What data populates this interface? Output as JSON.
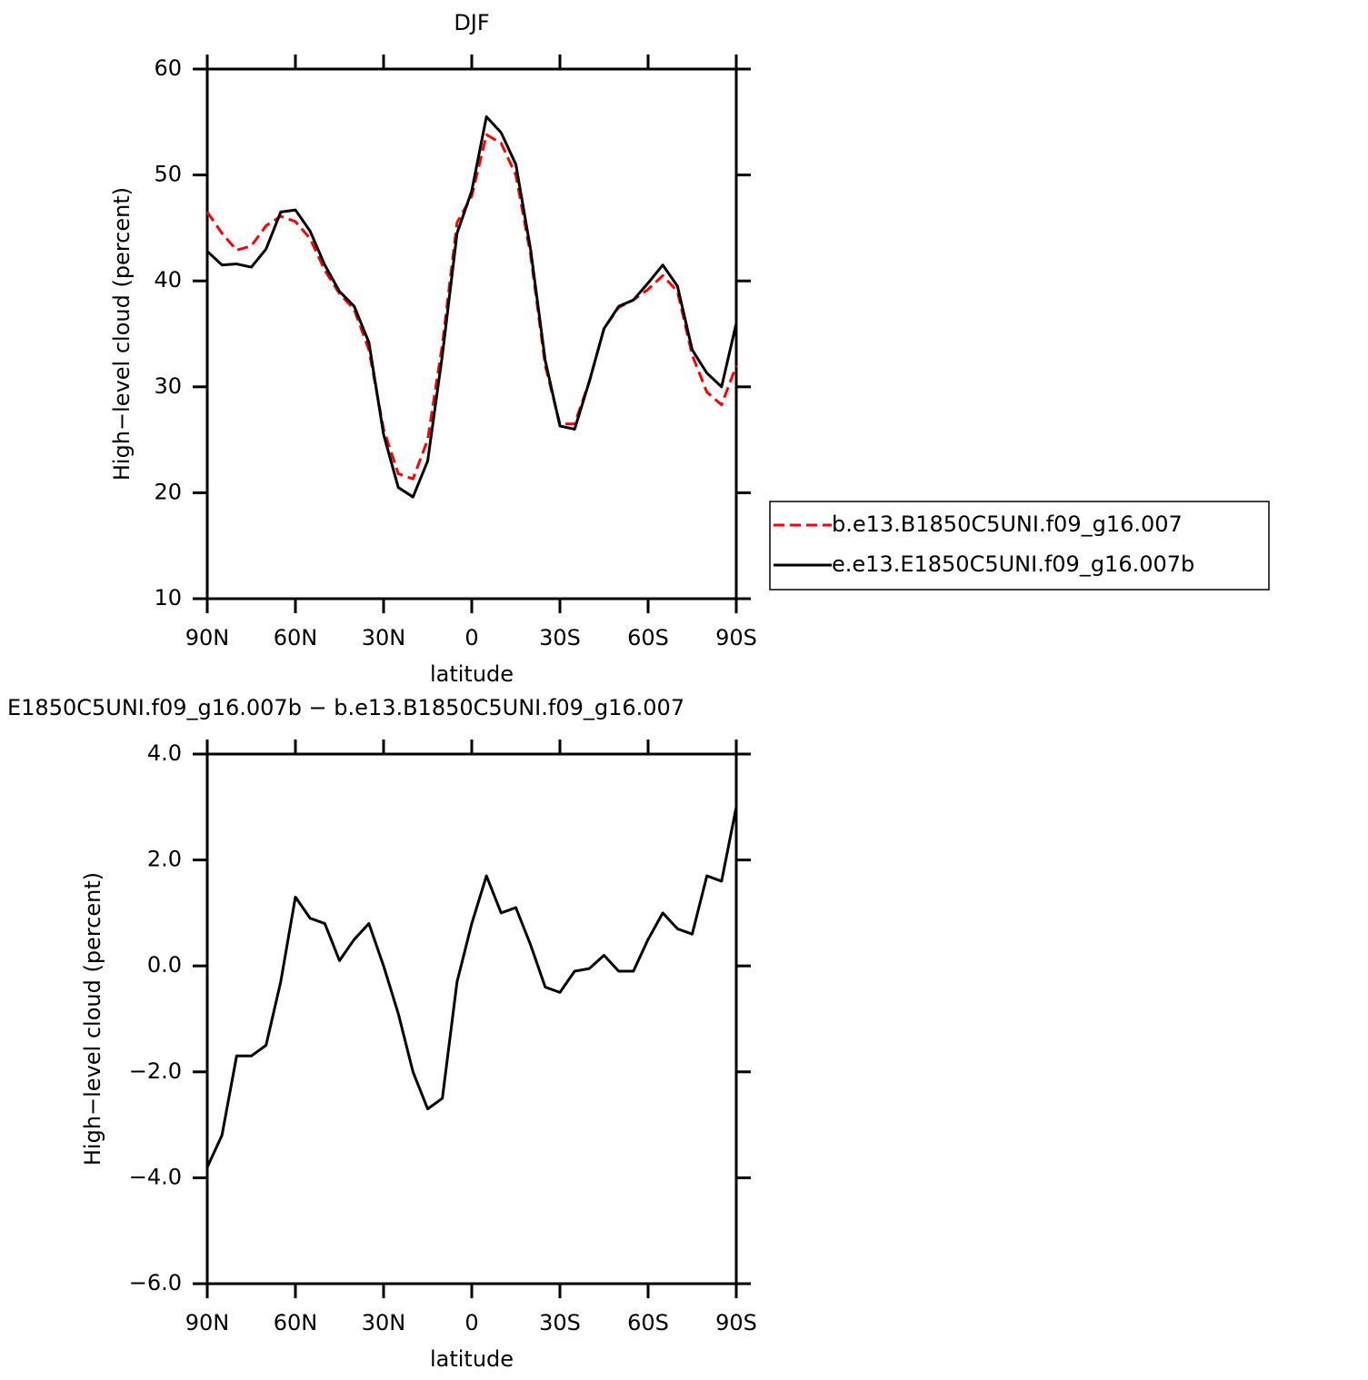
{
  "chart_data": [
    {
      "type": "line",
      "title": "DJF",
      "xlabel": "latitude",
      "ylabel": "High−level cloud (percent)",
      "x": [
        90,
        85,
        80,
        75,
        70,
        65,
        60,
        55,
        50,
        45,
        40,
        35,
        30,
        25,
        20,
        15,
        10,
        5,
        0,
        -5,
        -10,
        -15,
        -20,
        -25,
        -30,
        -35,
        -40,
        -45,
        -50,
        -55,
        -60,
        -65,
        -70,
        -75,
        -80,
        -85,
        -90
      ],
      "xlim": [
        90,
        -90
      ],
      "xticks": [
        {
          "value": 90,
          "label": "90N"
        },
        {
          "value": 60,
          "label": "60N"
        },
        {
          "value": 30,
          "label": "30N"
        },
        0,
        {
          "value": -30,
          "label": "30S"
        },
        {
          "value": -60,
          "label": "60S"
        },
        {
          "value": -90,
          "label": "90S"
        }
      ],
      "ylim": [
        10,
        60
      ],
      "yticks": [
        10,
        20,
        30,
        40,
        50,
        60
      ],
      "legend": "right",
      "series": [
        {
          "name": "b.e13.B1850C5UNI.f09_g16.007",
          "color": "#ff0000",
          "dashed": true,
          "values": [
            46.5,
            44.5,
            42.9,
            43.3,
            45.2,
            46.1,
            45.6,
            44.0,
            41.0,
            38.8,
            37.3,
            33.5,
            26.0,
            21.8,
            21.3,
            25.0,
            34.0,
            45.5,
            48.0,
            53.8,
            53.0,
            50.0,
            42.5,
            32.0,
            26.5,
            26.5,
            30.5,
            35.5,
            37.5,
            38.2,
            39.2,
            40.5,
            39.0,
            33.0,
            29.5,
            28.3,
            32.0
          ]
        },
        {
          "name": "e.e13.E1850C5UNI.f09_g16.007b",
          "color": "#000000",
          "dashed": false,
          "values": [
            42.8,
            41.5,
            41.6,
            41.3,
            43.0,
            46.5,
            46.7,
            44.7,
            41.5,
            39.0,
            37.6,
            34.2,
            25.5,
            20.5,
            19.6,
            23.0,
            33.0,
            44.5,
            48.5,
            55.5,
            54.0,
            51.0,
            43.0,
            32.5,
            26.3,
            26.0,
            30.5,
            35.5,
            37.6,
            38.2,
            39.8,
            41.5,
            39.5,
            33.5,
            31.3,
            30.0,
            36.0
          ]
        }
      ]
    },
    {
      "type": "line",
      "title": "E1850C5UNI.f09_g16.007b − b.e13.B1850C5UNI.f09_g16.007",
      "xlabel": "latitude",
      "ylabel": "High−level cloud (percent)",
      "x": [
        90,
        85,
        80,
        75,
        70,
        65,
        60,
        55,
        50,
        45,
        40,
        35,
        30,
        25,
        20,
        15,
        10,
        5,
        0,
        -5,
        -10,
        -15,
        -20,
        -25,
        -30,
        -35,
        -40,
        -45,
        -50,
        -55,
        -60,
        -65,
        -70,
        -75,
        -80,
        -85,
        -90
      ],
      "xlim": [
        90,
        -90
      ],
      "xticks": [
        {
          "value": 90,
          "label": "90N"
        },
        {
          "value": 60,
          "label": "60N"
        },
        {
          "value": 30,
          "label": "30N"
        },
        0,
        {
          "value": -30,
          "label": "30S"
        },
        {
          "value": -60,
          "label": "60S"
        },
        {
          "value": -90,
          "label": "90S"
        }
      ],
      "ylim": [
        -6,
        4
      ],
      "yticks": [
        {
          "value": -6,
          "label": "−6.0"
        },
        {
          "value": -4,
          "label": "−4.0"
        },
        {
          "value": -2,
          "label": "−2.0"
        },
        {
          "value": 0,
          "label": "0.0"
        },
        {
          "value": 2,
          "label": "2.0"
        },
        {
          "value": 4,
          "label": "4.0"
        }
      ],
      "color": "#000000",
      "values": [
        -3.8,
        -3.2,
        -1.7,
        -1.7,
        -1.5,
        -0.3,
        1.3,
        0.9,
        0.8,
        0.1,
        0.5,
        0.8,
        0.0,
        -0.9,
        -2.0,
        -2.7,
        -2.5,
        -0.3,
        0.8,
        1.7,
        1.0,
        1.1,
        0.4,
        -0.4,
        -0.5,
        -0.1,
        -0.05,
        0.2,
        -0.1,
        -0.1,
        0.5,
        1.0,
        0.7,
        0.6,
        1.7,
        1.6,
        3.0
      ]
    }
  ]
}
